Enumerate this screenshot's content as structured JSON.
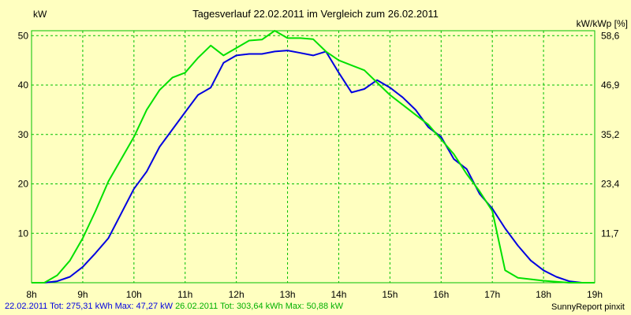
{
  "chart_data": {
    "type": "line",
    "title": "Tagesverlauf 22.02.2011 im Vergleich zum 26.02.2011",
    "ylabel": "kW",
    "ylabel_right": "kW/kWp [%]",
    "x_ticks": [
      "8h",
      "9h",
      "10h",
      "11h",
      "12h",
      "13h",
      "14h",
      "15h",
      "16h",
      "17h",
      "18h",
      "19h"
    ],
    "xlim": [
      8,
      19
    ],
    "ylim": [
      0,
      51
    ],
    "y_ticks": [
      10,
      20,
      30,
      40,
      50
    ],
    "y_ticks_right": [
      "11,7",
      "23,4",
      "35,2",
      "46,9",
      "58,6"
    ],
    "grid": true,
    "background": "#ffffc0",
    "grid_color": "#00c000",
    "series": [
      {
        "name": "22.02.2011",
        "color": "#0000e0",
        "x": [
          8.0,
          8.25,
          8.5,
          8.75,
          9.0,
          9.25,
          9.5,
          9.75,
          10.0,
          10.25,
          10.5,
          10.75,
          11.0,
          11.25,
          11.5,
          11.75,
          12.0,
          12.25,
          12.5,
          12.75,
          13.0,
          13.25,
          13.5,
          13.75,
          14.0,
          14.25,
          14.5,
          14.75,
          15.0,
          15.25,
          15.5,
          15.75,
          16.0,
          16.25,
          16.5,
          16.75,
          17.0,
          17.25,
          17.5,
          17.75,
          18.0,
          18.25,
          18.5,
          18.75,
          19.0
        ],
        "values": [
          0,
          0,
          0.3,
          1.2,
          3.2,
          6.0,
          9.0,
          14.0,
          19.0,
          22.5,
          27.5,
          31.0,
          34.5,
          38.0,
          39.5,
          44.5,
          46.0,
          46.3,
          46.3,
          46.8,
          47.0,
          46.5,
          46.0,
          46.8,
          42.5,
          38.5,
          39.2,
          41.0,
          39.5,
          37.5,
          35.0,
          31.5,
          29.5,
          25.0,
          23.0,
          18.0,
          15.0,
          11.0,
          7.5,
          4.5,
          2.5,
          1.2,
          0.3,
          0,
          0
        ]
      },
      {
        "name": "26.02.2011",
        "color": "#00e000",
        "x": [
          8.0,
          8.25,
          8.5,
          8.75,
          9.0,
          9.25,
          9.5,
          9.75,
          10.0,
          10.25,
          10.5,
          10.75,
          11.0,
          11.25,
          11.5,
          11.75,
          12.0,
          12.25,
          12.5,
          12.75,
          13.0,
          13.25,
          13.5,
          13.75,
          14.0,
          14.25,
          14.5,
          14.75,
          15.0,
          15.25,
          15.5,
          15.75,
          16.0,
          16.25,
          16.5,
          16.75,
          17.0,
          17.25,
          17.5,
          17.75,
          18.0,
          18.25,
          18.5,
          18.75,
          19.0
        ],
        "values": [
          0,
          0,
          1.5,
          4.5,
          9.0,
          14.5,
          20.5,
          25.0,
          29.5,
          35.0,
          39.0,
          41.5,
          42.5,
          45.5,
          48.0,
          46.0,
          47.5,
          49.0,
          49.2,
          51.0,
          49.5,
          49.5,
          49.3,
          46.8,
          45.0,
          44.0,
          43.0,
          40.5,
          38.0,
          36.0,
          34.0,
          32.0,
          29.0,
          26.0,
          22.0,
          18.5,
          14.5,
          2.5,
          1.0,
          0.7,
          0.4,
          0.2,
          0,
          0,
          0
        ]
      }
    ]
  },
  "footer": {
    "series1_text": "22.02.2011 Tot: 275,31 kWh Max: 47,27 kW",
    "series2_text": "26.02.2011 Tot: 303,64 kWh Max: 50,88 kW",
    "credit": "SunnyReport pinxit"
  }
}
